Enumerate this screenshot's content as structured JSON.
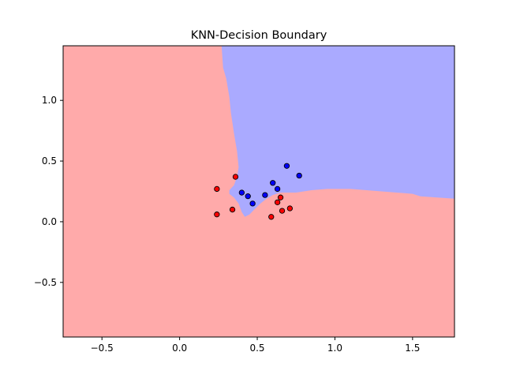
{
  "chart_data": {
    "type": "scatter",
    "title": "KNN-Decision Boundary",
    "xlabel": "",
    "ylabel": "",
    "xlim": [
      -0.75,
      1.77
    ],
    "ylim": [
      -0.95,
      1.45
    ],
    "xticks": [
      -0.5,
      0.0,
      0.5,
      1.0,
      1.5
    ],
    "xtick_labels": [
      "−0.5",
      "0.0",
      "0.5",
      "1.0",
      "1.5"
    ],
    "yticks": [
      -0.5,
      0.0,
      0.5,
      1.0
    ],
    "ytick_labels": [
      "−0.5",
      "0.0",
      "0.5",
      "1.0"
    ],
    "grid": false,
    "region_colors": {
      "class_0": "#ffaaaa",
      "class_1": "#aaaaff"
    },
    "region_class_1_boundary": [
      [
        0.27,
        1.45
      ],
      [
        0.28,
        1.27
      ],
      [
        0.3,
        1.18
      ],
      [
        0.32,
        1.03
      ],
      [
        0.33,
        0.9
      ],
      [
        0.35,
        0.73
      ],
      [
        0.37,
        0.58
      ],
      [
        0.38,
        0.45
      ],
      [
        0.37,
        0.37
      ],
      [
        0.35,
        0.3
      ],
      [
        0.32,
        0.26
      ],
      [
        0.32,
        0.23
      ],
      [
        0.35,
        0.2
      ],
      [
        0.38,
        0.15
      ],
      [
        0.4,
        0.08
      ],
      [
        0.42,
        0.04
      ],
      [
        0.45,
        0.06
      ],
      [
        0.48,
        0.1
      ],
      [
        0.52,
        0.15
      ],
      [
        0.56,
        0.19
      ],
      [
        0.6,
        0.22
      ],
      [
        0.65,
        0.24
      ],
      [
        0.75,
        0.24
      ],
      [
        0.85,
        0.26
      ],
      [
        0.95,
        0.27
      ],
      [
        1.1,
        0.27
      ],
      [
        1.3,
        0.25
      ],
      [
        1.5,
        0.23
      ],
      [
        1.55,
        0.21
      ],
      [
        1.77,
        0.19
      ],
      [
        1.77,
        1.45
      ]
    ],
    "series": [
      {
        "color": "#ff0000",
        "points": [
          [
            0.24,
            0.27
          ],
          [
            0.36,
            0.37
          ],
          [
            0.24,
            0.06
          ],
          [
            0.34,
            0.1
          ],
          [
            0.59,
            0.04
          ],
          [
            0.63,
            0.16
          ],
          [
            0.65,
            0.2
          ],
          [
            0.66,
            0.09
          ],
          [
            0.71,
            0.11
          ]
        ]
      },
      {
        "color": "#0000ff",
        "points": [
          [
            0.4,
            0.24
          ],
          [
            0.44,
            0.21
          ],
          [
            0.47,
            0.15
          ],
          [
            0.55,
            0.22
          ],
          [
            0.6,
            0.32
          ],
          [
            0.63,
            0.27
          ],
          [
            0.69,
            0.46
          ],
          [
            0.77,
            0.38
          ]
        ]
      }
    ]
  }
}
